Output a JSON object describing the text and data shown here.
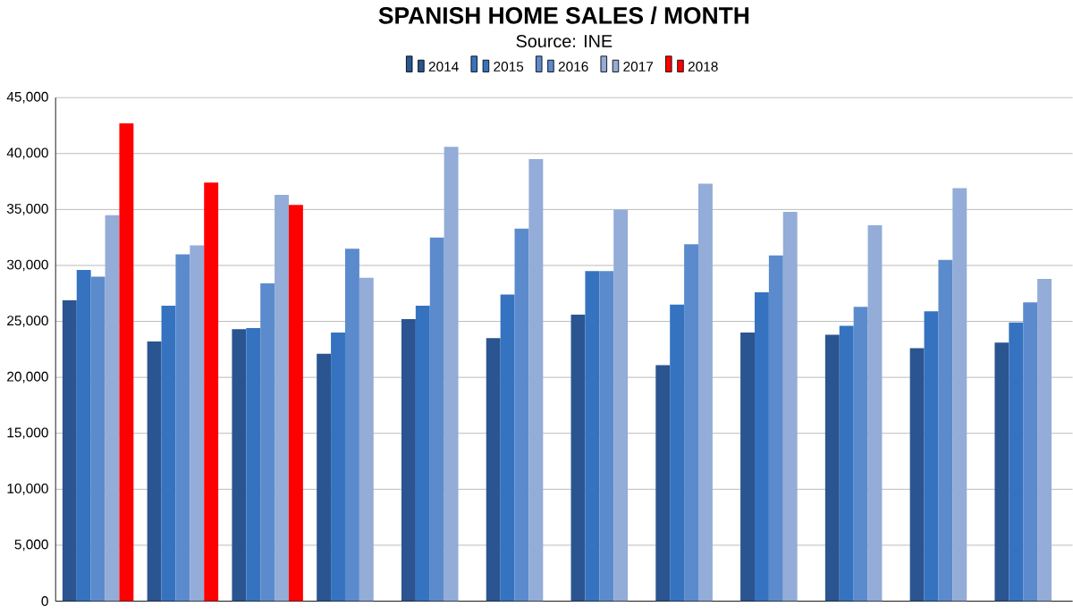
{
  "chart_data": {
    "type": "bar",
    "title": "SPANISH HOME SALES / MONTH",
    "subtitle": "Source: INE",
    "categories": [
      null,
      null,
      null,
      null,
      null,
      null,
      null,
      null,
      null,
      null,
      null,
      null
    ],
    "series": [
      {
        "name": "2014",
        "color": "#2a5590",
        "values": [
          26900,
          23200,
          24300,
          22100,
          25200,
          23500,
          25600,
          21100,
          24000,
          23800,
          22600,
          23100
        ]
      },
      {
        "name": "2015",
        "color": "#3573c0",
        "values": [
          29600,
          26400,
          24400,
          24000,
          26400,
          27400,
          29500,
          26500,
          27600,
          24600,
          25900,
          24900
        ]
      },
      {
        "name": "2016",
        "color": "#5b8bcc",
        "values": [
          29000,
          31000,
          28400,
          31500,
          32500,
          33300,
          29500,
          31900,
          30900,
          26300,
          30500,
          26700
        ]
      },
      {
        "name": "2017",
        "color": "#93acd8",
        "values": [
          34500,
          31800,
          36300,
          28900,
          40600,
          39500,
          35000,
          37300,
          34800,
          33600,
          36900,
          28800
        ]
      },
      {
        "name": "2018",
        "color": "#ff0000",
        "values": [
          42700,
          37400,
          35400,
          null,
          null,
          null,
          null,
          null,
          null,
          null,
          null,
          null
        ]
      }
    ],
    "ylim": [
      0,
      45000
    ],
    "yticks": [
      {
        "value": 0,
        "label": "0"
      },
      {
        "value": 5000,
        "label": "5,000"
      },
      {
        "value": 10000,
        "label": "10,000"
      },
      {
        "value": 15000,
        "label": "15,000"
      },
      {
        "value": 20000,
        "label": "20,000"
      },
      {
        "value": 25000,
        "label": "25,000"
      },
      {
        "value": 30000,
        "label": "30,000"
      },
      {
        "value": 35000,
        "label": "35,000"
      },
      {
        "value": 40000,
        "label": "40,000"
      },
      {
        "value": 45000,
        "label": "45,000"
      }
    ],
    "grid": "y",
    "legend": "top"
  }
}
